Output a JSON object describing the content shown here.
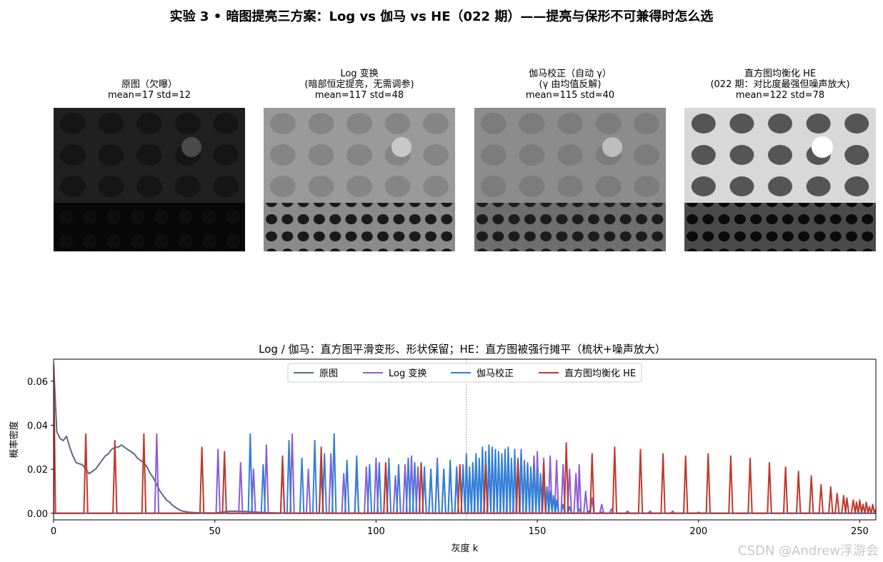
{
  "suptitle": "实验 3 • 暗图提亮三方案：Log vs 伽马 vs HE（022 期）——提亮与保形不可兼得时怎么选",
  "panels": [
    {
      "line1": "原图（欠曝）",
      "line2": "mean=17  std=12",
      "line3": ""
    },
    {
      "line1": "Log 变换",
      "line2": "(暗部恒定提亮，无需调参)",
      "line3": "mean=117  std=48"
    },
    {
      "line1": "伽马校正（自动 γ）",
      "line2": "(γ 由均值反解)",
      "line3": "mean=115  std=40"
    },
    {
      "line1": "直方图均衡化 HE",
      "line2": "(022 期：对比度最强但噪声放大)",
      "line3": "mean=122  std=78"
    }
  ],
  "watermark": "CSDN @Andrew浮游会",
  "chart_data": {
    "type": "line",
    "title": "Log / 伽马：直方图平滑变形、形状保留；HE：直方图被强行摊平（梳状+噪声放大）",
    "xlabel": "灰度 k",
    "ylabel": "概率密度",
    "xlim": [
      0,
      255
    ],
    "ylim": [
      -0.003,
      0.07
    ],
    "xticks": [
      0,
      50,
      100,
      150,
      200,
      250
    ],
    "yticks": [
      0.0,
      0.02,
      0.04,
      0.06
    ],
    "ytick_labels": [
      "0.00",
      "0.02",
      "0.04",
      "0.06"
    ],
    "vline_x": 128,
    "legend_position": "top-center",
    "series": [
      {
        "name": "原图",
        "color": "#5b6b82",
        "x": [
          0,
          1,
          2,
          3,
          4,
          5,
          6,
          7,
          8,
          9,
          10,
          11,
          12,
          13,
          14,
          15,
          16,
          17,
          18,
          19,
          20,
          21,
          22,
          23,
          24,
          25,
          26,
          27,
          28,
          29,
          30,
          31,
          32,
          33,
          34,
          35,
          36,
          37,
          38,
          39,
          40,
          42,
          45,
          50,
          55,
          60,
          65,
          70,
          80,
          90
        ],
        "y": [
          0.068,
          0.037,
          0.034,
          0.033,
          0.035,
          0.03,
          0.026,
          0.023,
          0.0225,
          0.022,
          0.02,
          0.018,
          0.019,
          0.02,
          0.022,
          0.024,
          0.026,
          0.027,
          0.029,
          0.03,
          0.03,
          0.031,
          0.03,
          0.029,
          0.028,
          0.027,
          0.025,
          0.024,
          0.023,
          0.021,
          0.018,
          0.016,
          0.013,
          0.01,
          0.008,
          0.006,
          0.005,
          0.0035,
          0.0025,
          0.0015,
          0.001,
          0.0005,
          0.0002,
          0.0001,
          0.001,
          0.0008,
          0.0003,
          0.0001,
          0,
          0
        ]
      },
      {
        "name": "Log 变换",
        "color": "#8b5cdb",
        "spikes": [
          [
            32,
            0.036
          ],
          [
            51,
            0.029
          ],
          [
            58,
            0.023
          ],
          [
            62,
            0.02
          ],
          [
            66,
            0.031
          ],
          [
            71,
            0.022
          ],
          [
            74,
            0.036
          ],
          [
            79,
            0.02
          ],
          [
            83,
            0.021
          ],
          [
            86,
            0.027
          ],
          [
            90,
            0.018
          ],
          [
            94,
            0.02
          ],
          [
            97,
            0.021
          ],
          [
            100,
            0.025
          ],
          [
            103,
            0.022
          ],
          [
            106,
            0.017
          ],
          [
            109,
            0.022
          ],
          [
            111,
            0.026
          ],
          [
            113,
            0.021
          ],
          [
            115,
            0.018
          ],
          [
            117,
            0.02
          ],
          [
            119,
            0.025
          ],
          [
            121,
            0.02
          ],
          [
            123,
            0.023
          ],
          [
            125,
            0.017
          ],
          [
            127,
            0.022
          ],
          [
            129,
            0.019
          ],
          [
            131,
            0.026
          ],
          [
            133,
            0.024
          ],
          [
            135,
            0.02
          ],
          [
            137,
            0.027
          ],
          [
            139,
            0.022
          ],
          [
            141,
            0.028
          ],
          [
            143,
            0.021
          ],
          [
            145,
            0.029
          ],
          [
            147,
            0.023
          ],
          [
            149,
            0.026
          ],
          [
            150,
            0.028
          ],
          [
            152,
            0.025
          ],
          [
            154,
            0.026
          ],
          [
            156,
            0.024
          ],
          [
            158,
            0.022
          ],
          [
            160,
            0.02
          ],
          [
            162,
            0.018
          ],
          [
            163,
            0.022
          ],
          [
            165,
            0.01
          ],
          [
            167,
            0.007
          ],
          [
            170,
            0.004
          ],
          [
            173,
            0.002
          ],
          [
            178,
            0.001
          ],
          [
            185,
            0.001
          ],
          [
            192,
            0.001
          ],
          [
            200,
            0.0005
          ]
        ]
      },
      {
        "name": "伽马校正",
        "color": "#2f80d8",
        "spikes": [
          [
            61,
            0.036
          ],
          [
            65,
            0.022
          ],
          [
            73,
            0.033
          ],
          [
            77,
            0.025
          ],
          [
            81,
            0.033
          ],
          [
            84,
            0.027
          ],
          [
            87,
            0.036
          ],
          [
            91,
            0.024
          ],
          [
            94,
            0.026
          ],
          [
            98,
            0.022
          ],
          [
            101,
            0.023
          ],
          [
            104,
            0.025
          ],
          [
            107,
            0.022
          ],
          [
            110,
            0.025
          ],
          [
            112,
            0.023
          ],
          [
            115,
            0.021
          ],
          [
            117,
            0.02
          ],
          [
            119,
            0.022
          ],
          [
            121,
            0.02
          ],
          [
            123,
            0.024
          ],
          [
            125,
            0.021
          ],
          [
            127,
            0.02
          ],
          [
            128,
            0.027
          ],
          [
            129,
            0.021
          ],
          [
            130,
            0.023
          ],
          [
            131,
            0.027
          ],
          [
            132,
            0.025
          ],
          [
            133,
            0.03
          ],
          [
            134,
            0.028
          ],
          [
            135,
            0.031
          ],
          [
            136,
            0.03
          ],
          [
            137,
            0.029
          ],
          [
            138,
            0.028
          ],
          [
            139,
            0.027
          ],
          [
            140,
            0.029
          ],
          [
            141,
            0.03
          ],
          [
            142,
            0.025
          ],
          [
            143,
            0.029
          ],
          [
            144,
            0.025
          ],
          [
            145,
            0.027
          ],
          [
            146,
            0.024
          ],
          [
            147,
            0.022
          ],
          [
            148,
            0.021
          ],
          [
            149,
            0.022
          ],
          [
            150,
            0.019
          ],
          [
            151,
            0.018
          ],
          [
            152,
            0.016
          ],
          [
            153,
            0.012
          ],
          [
            154,
            0.01
          ],
          [
            155,
            0.008
          ],
          [
            156,
            0.006
          ],
          [
            158,
            0.004
          ],
          [
            160,
            0.003
          ],
          [
            163,
            0.002
          ],
          [
            166,
            0.001
          ],
          [
            170,
            0.0005
          ]
        ]
      },
      {
        "name": "直方图均衡化 HE",
        "color": "#c0392b",
        "spikes": [
          [
            0,
            0.068
          ],
          [
            10,
            0.036
          ],
          [
            19,
            0.033
          ],
          [
            28,
            0.036
          ],
          [
            46,
            0.03
          ],
          [
            53,
            0.028
          ],
          [
            71,
            0.026
          ],
          [
            83,
            0.03
          ],
          [
            103,
            0.023
          ],
          [
            114,
            0.023
          ],
          [
            126,
            0.022
          ],
          [
            134,
            0.022
          ],
          [
            144,
            0.024
          ],
          [
            152,
            0.023
          ],
          [
            159,
            0.032
          ],
          [
            167,
            0.027
          ],
          [
            174,
            0.03
          ],
          [
            182,
            0.029
          ],
          [
            189,
            0.027
          ],
          [
            196,
            0.026
          ],
          [
            203,
            0.027
          ],
          [
            210,
            0.026
          ],
          [
            216,
            0.025
          ],
          [
            222,
            0.023
          ],
          [
            227,
            0.021
          ],
          [
            231,
            0.019
          ],
          [
            235,
            0.017
          ],
          [
            238,
            0.013
          ],
          [
            241,
            0.012
          ],
          [
            243,
            0.009
          ],
          [
            245,
            0.008
          ],
          [
            246,
            0.007
          ],
          [
            248,
            0.006
          ],
          [
            249,
            0.005
          ],
          [
            250,
            0.006
          ],
          [
            251,
            0.004
          ],
          [
            252,
            0.005
          ],
          [
            253,
            0.003
          ],
          [
            254,
            0.004
          ],
          [
            255,
            0.002
          ]
        ]
      }
    ]
  }
}
